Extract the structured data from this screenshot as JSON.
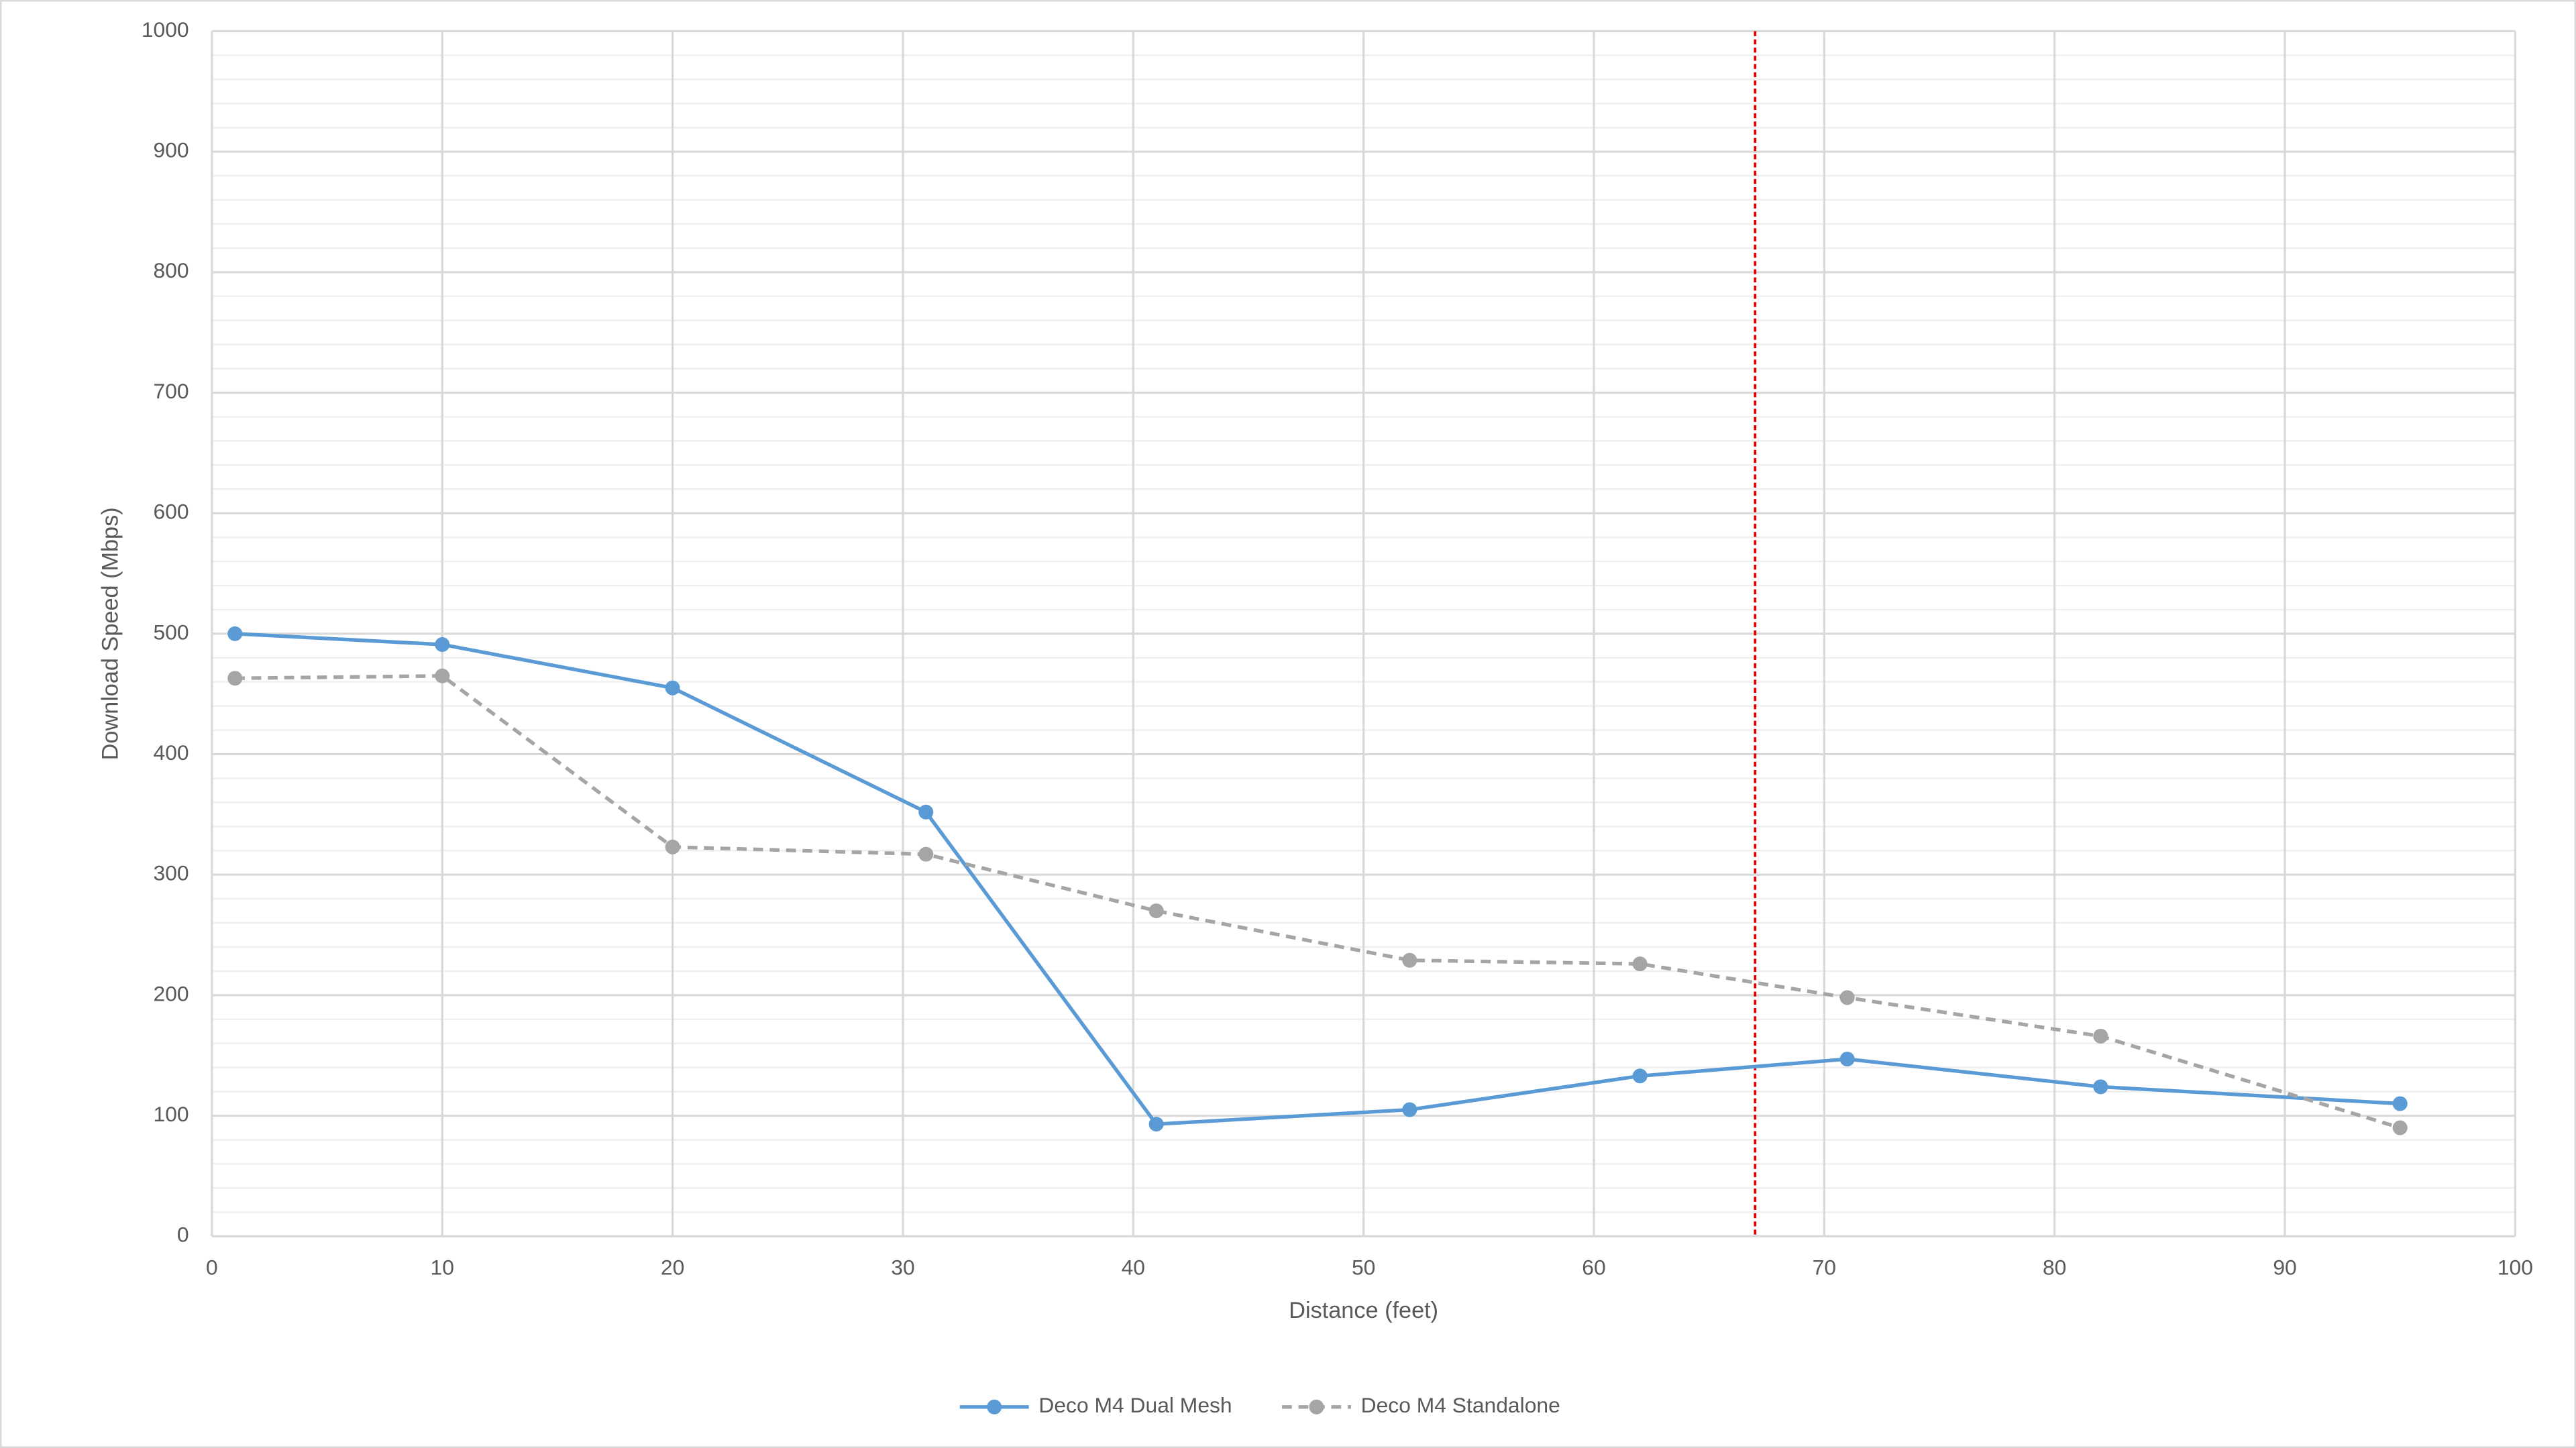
{
  "chart_data": {
    "type": "line",
    "x_label": "Distance (feet)",
    "y_label": "Download Speed (Mbps)",
    "xlim": [
      0,
      100
    ],
    "xticks": [
      0,
      10,
      20,
      30,
      40,
      50,
      60,
      70,
      80,
      90,
      100
    ],
    "ylim": [
      0,
      1000
    ],
    "yticks": [
      0,
      100,
      200,
      300,
      400,
      500,
      600,
      700,
      800,
      900,
      1000
    ],
    "minor_yticks": [
      20,
      40,
      60,
      80,
      120,
      140,
      160,
      180,
      220,
      240,
      260,
      280,
      320,
      340,
      360,
      380,
      420,
      440,
      460,
      480,
      520,
      540,
      560,
      580,
      620,
      640,
      660,
      680,
      720,
      740,
      760,
      780,
      820,
      840,
      860,
      880,
      920,
      940,
      960,
      980
    ],
    "grid": true,
    "legend": "bottom",
    "reference_line": {
      "x": 67,
      "color": "#e00000"
    },
    "series": [
      {
        "name": "Deco M4 Dual Mesh",
        "color": "#5b9bd5",
        "dash": false,
        "x": [
          1,
          10,
          20,
          31,
          41,
          52,
          62,
          71,
          82,
          95
        ],
        "values": [
          500,
          491,
          455,
          352,
          93,
          105,
          133,
          147,
          124,
          110
        ]
      },
      {
        "name": "Deco M4 Standalone",
        "color": "#a5a5a5",
        "dash": true,
        "x": [
          1,
          10,
          20,
          31,
          41,
          52,
          62,
          71,
          82,
          95
        ],
        "values": [
          463,
          465,
          323,
          317,
          270,
          229,
          226,
          198,
          166,
          90
        ]
      }
    ]
  }
}
